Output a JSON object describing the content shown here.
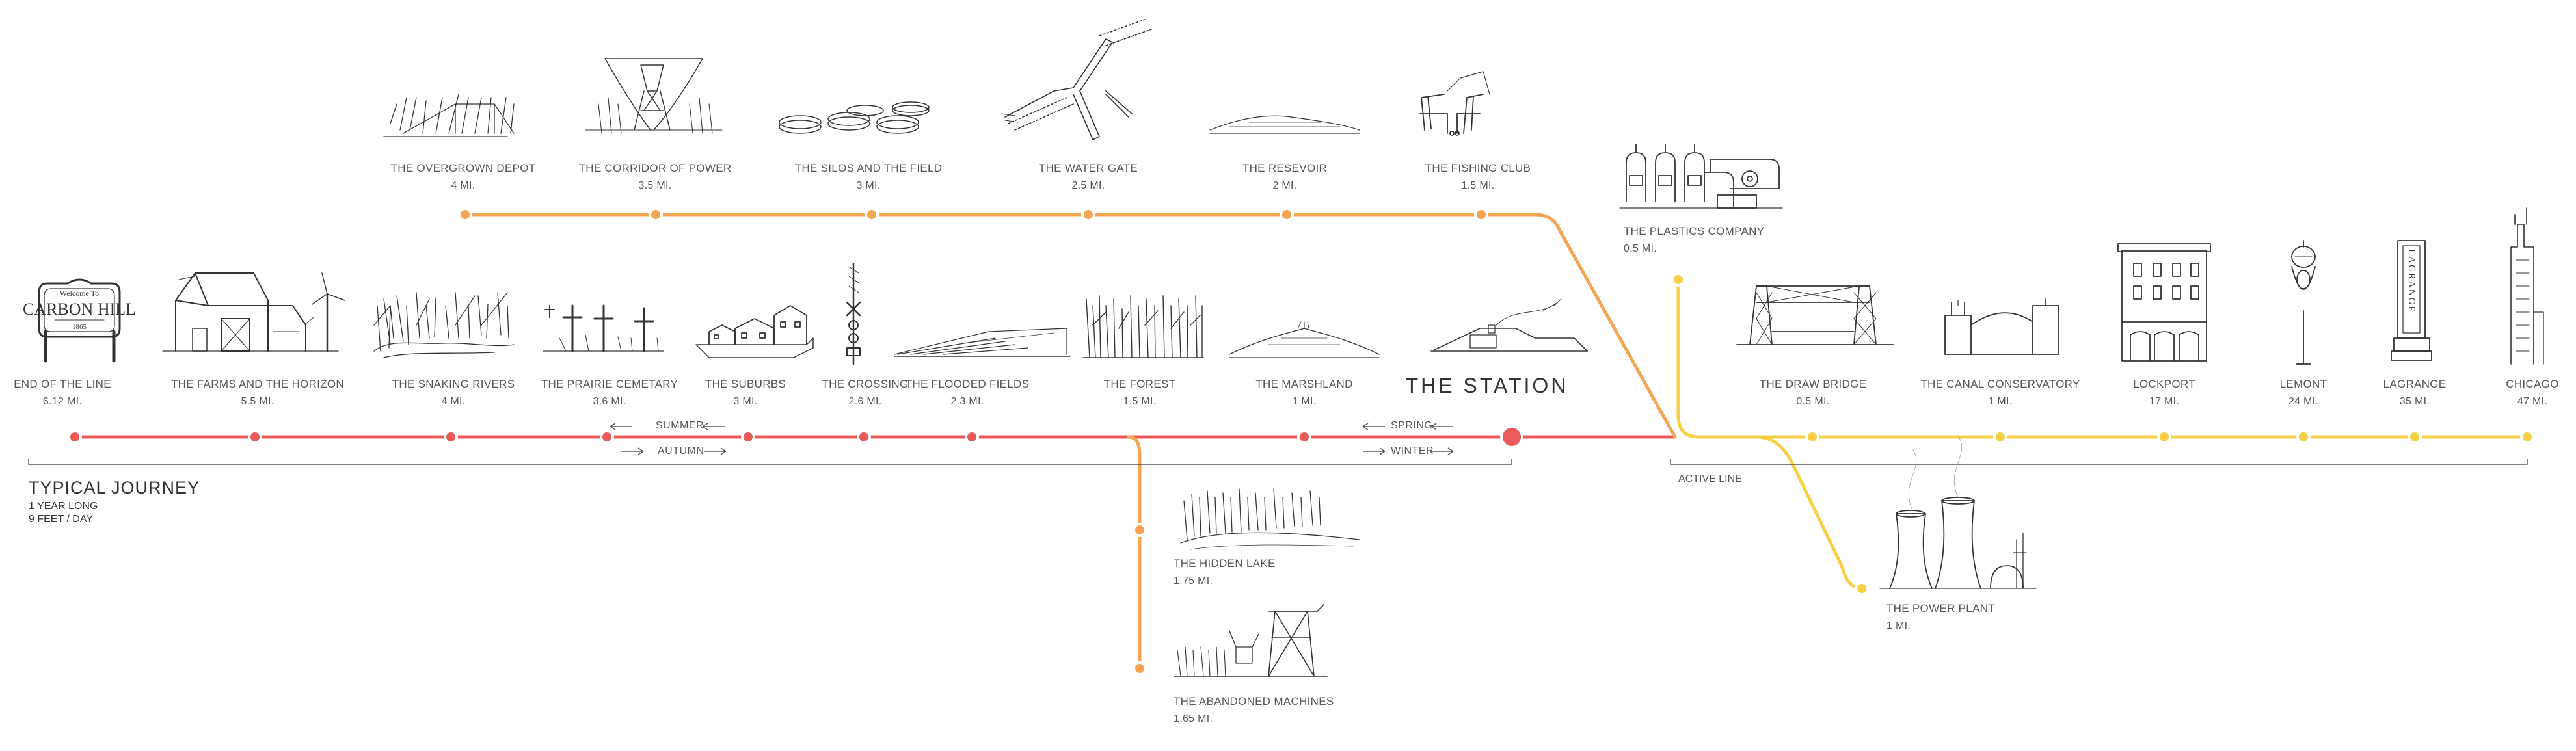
{
  "station": {
    "title": "THE STATION"
  },
  "journey": {
    "title": "TYPICAL JOURNEY",
    "duration": "1 YEAR LONG",
    "rate": "9 FEET / DAY"
  },
  "seasons": {
    "summer": "SUMMER",
    "autumn": "AUTUMN",
    "spring": "SPRING",
    "winter": "WINTER"
  },
  "active_line": "ACTIVE LINE",
  "sign": {
    "welcome": "Welcome To",
    "town": "CARBON HILL",
    "year": "1865"
  },
  "lagrange_sign": "LAGRANGE",
  "colors": {
    "main_line": "#ea5a5a",
    "upper_line": "#f4a553",
    "active_line": "#f7d048",
    "ink": "#333333"
  },
  "main_stops": [
    {
      "name": "END OF THE LINE",
      "dist": "6.12 MI."
    },
    {
      "name": "THE FARMS AND THE HORIZON",
      "dist": "5.5 MI."
    },
    {
      "name": "THE SNAKING RIVERS",
      "dist": "4 MI."
    },
    {
      "name": "THE PRAIRIE CEMETARY",
      "dist": "3.6 MI."
    },
    {
      "name": "THE SUBURBS",
      "dist": "3 MI."
    },
    {
      "name": "THE CROSSING",
      "dist": "2.6 MI."
    },
    {
      "name": "THE FLOODED FIELDS",
      "dist": "2.3 MI."
    },
    {
      "name": "THE FOREST",
      "dist": "1.5 MI."
    },
    {
      "name": "THE MARSHLAND",
      "dist": "1 MI."
    }
  ],
  "upper_stops": [
    {
      "name": "THE OVERGROWN DEPOT",
      "dist": "4 MI."
    },
    {
      "name": "THE CORRIDOR OF POWER",
      "dist": "3.5 MI."
    },
    {
      "name": "THE SILOS AND THE FIELD",
      "dist": "3 MI."
    },
    {
      "name": "THE WATER GATE",
      "dist": "2.5 MI."
    },
    {
      "name": "THE RESEVOIR",
      "dist": "2 MI."
    },
    {
      "name": "THE FISHING CLUB",
      "dist": "1.5 MI."
    }
  ],
  "lower_stops": [
    {
      "name": "THE HIDDEN LAKE",
      "dist": "1.75 MI."
    },
    {
      "name": "THE ABANDONED MACHINES",
      "dist": "1.65 MI."
    }
  ],
  "active_stops": [
    {
      "name": "THE PLASTICS COMPANY",
      "dist": "0.5 MI."
    },
    {
      "name": "THE DRAW BRIDGE",
      "dist": "0.5 MI."
    },
    {
      "name": "THE CANAL CONSERVATORY",
      "dist": "1 MI."
    },
    {
      "name": "LOCKPORT",
      "dist": "17 MI."
    },
    {
      "name": "LEMONT",
      "dist": "24 MI."
    },
    {
      "name": "LAGRANGE",
      "dist": "35 MI."
    },
    {
      "name": "CHICAGO",
      "dist": "47 MI."
    },
    {
      "name": "THE POWER PLANT",
      "dist": "1 MI."
    }
  ]
}
